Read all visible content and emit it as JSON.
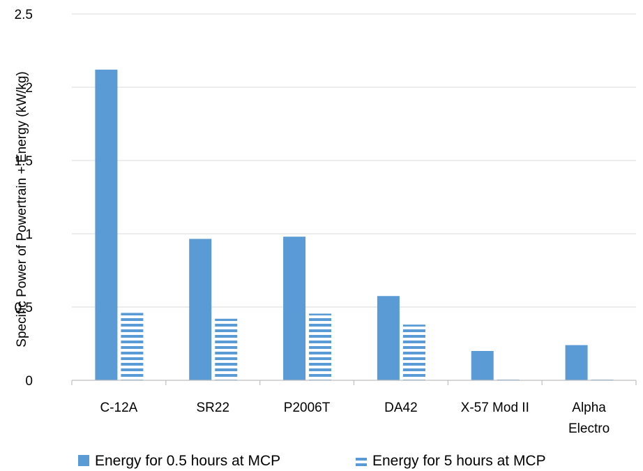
{
  "chart_data": {
    "type": "bar",
    "categories": [
      [
        "C-12A"
      ],
      [
        "SR22"
      ],
      [
        "P2006T"
      ],
      [
        "DA42"
      ],
      [
        "X-57 Mod II"
      ],
      [
        "Alpha",
        "Electro"
      ]
    ],
    "series": [
      {
        "name": "Energy for 0.5 hours at MCP",
        "values": [
          2.12,
          0.965,
          0.98,
          0.575,
          0.2,
          0.24
        ],
        "color": "#5b9bd5",
        "pattern": "solid"
      },
      {
        "name": "Energy for 5 hours at MCP",
        "values": [
          0.46,
          0.42,
          0.455,
          0.38,
          0.015,
          0.015
        ],
        "color": "#5b9bd5",
        "pattern": "horizontal-stripes"
      }
    ],
    "ylabel": "Specific Power of Powertrain + Energy (kW/kg)",
    "xlabel": "",
    "ylim": [
      0,
      2.5
    ],
    "yticks": [
      "0",
      "0.5",
      "1",
      "1.5",
      "2",
      "2.5"
    ],
    "grid": true,
    "legend_position": "bottom"
  }
}
